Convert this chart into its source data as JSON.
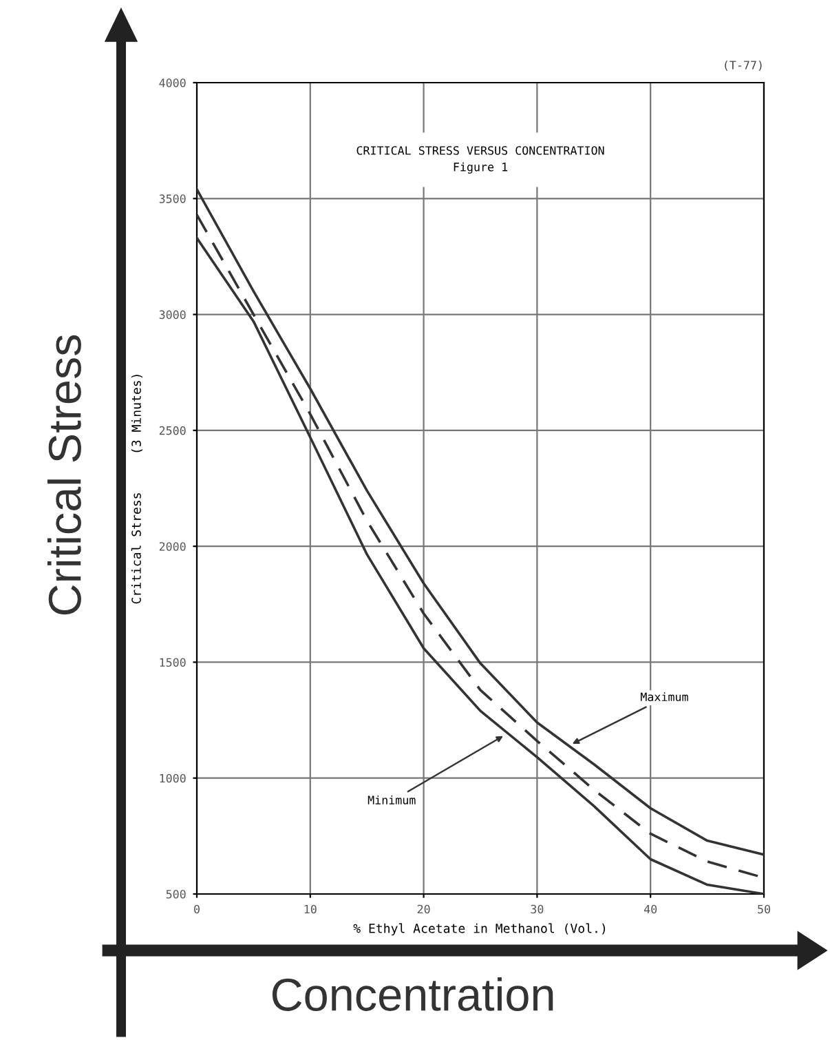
{
  "chart_data": {
    "type": "line",
    "title": "CRITICAL STRESS VERSUS CONCENTRATION",
    "subtitle": "Figure 1",
    "xlabel": "% Ethyl Acetate in Methanol (Vol.)",
    "ylabel": "Critical Stress     (3 Minutes)",
    "x": [
      0,
      5,
      10,
      15,
      20,
      25,
      30,
      35,
      40,
      45,
      50
    ],
    "series": [
      {
        "color": "#333333",
        "line_style": "solid",
        "values": [
          3540,
          3100,
          2680,
          2240,
          1840,
          1495,
          1240,
          1060,
          870,
          730,
          670
        ]
      },
      {
        "color": "#333333",
        "line_style": "dashed",
        "values": [
          3430,
          3000,
          2570,
          2110,
          1710,
          1380,
          1160,
          950,
          760,
          640,
          570
        ]
      },
      {
        "color": "#333333",
        "line_style": "solid",
        "values": [
          3330,
          2970,
          2470,
          1965,
          1560,
          1290,
          1090,
          880,
          650,
          540,
          500
        ]
      }
    ],
    "annotations": [
      "(T-77)",
      "Critical Stress",
      "Concentration",
      {
        "text": "Maximum",
        "x": 32.8,
        "y": 1140
      },
      {
        "text": "Minimum",
        "x": 27.3,
        "y": 1190
      }
    ],
    "xlim": [
      0,
      50
    ],
    "ylim": [
      500,
      4000
    ],
    "xticks": [
      0,
      10,
      20,
      30,
      40,
      50
    ],
    "yticks": [
      500,
      1000,
      1500,
      2000,
      2500,
      3000,
      3500,
      4000
    ],
    "grid": true,
    "legend": false,
    "marker": "none"
  }
}
